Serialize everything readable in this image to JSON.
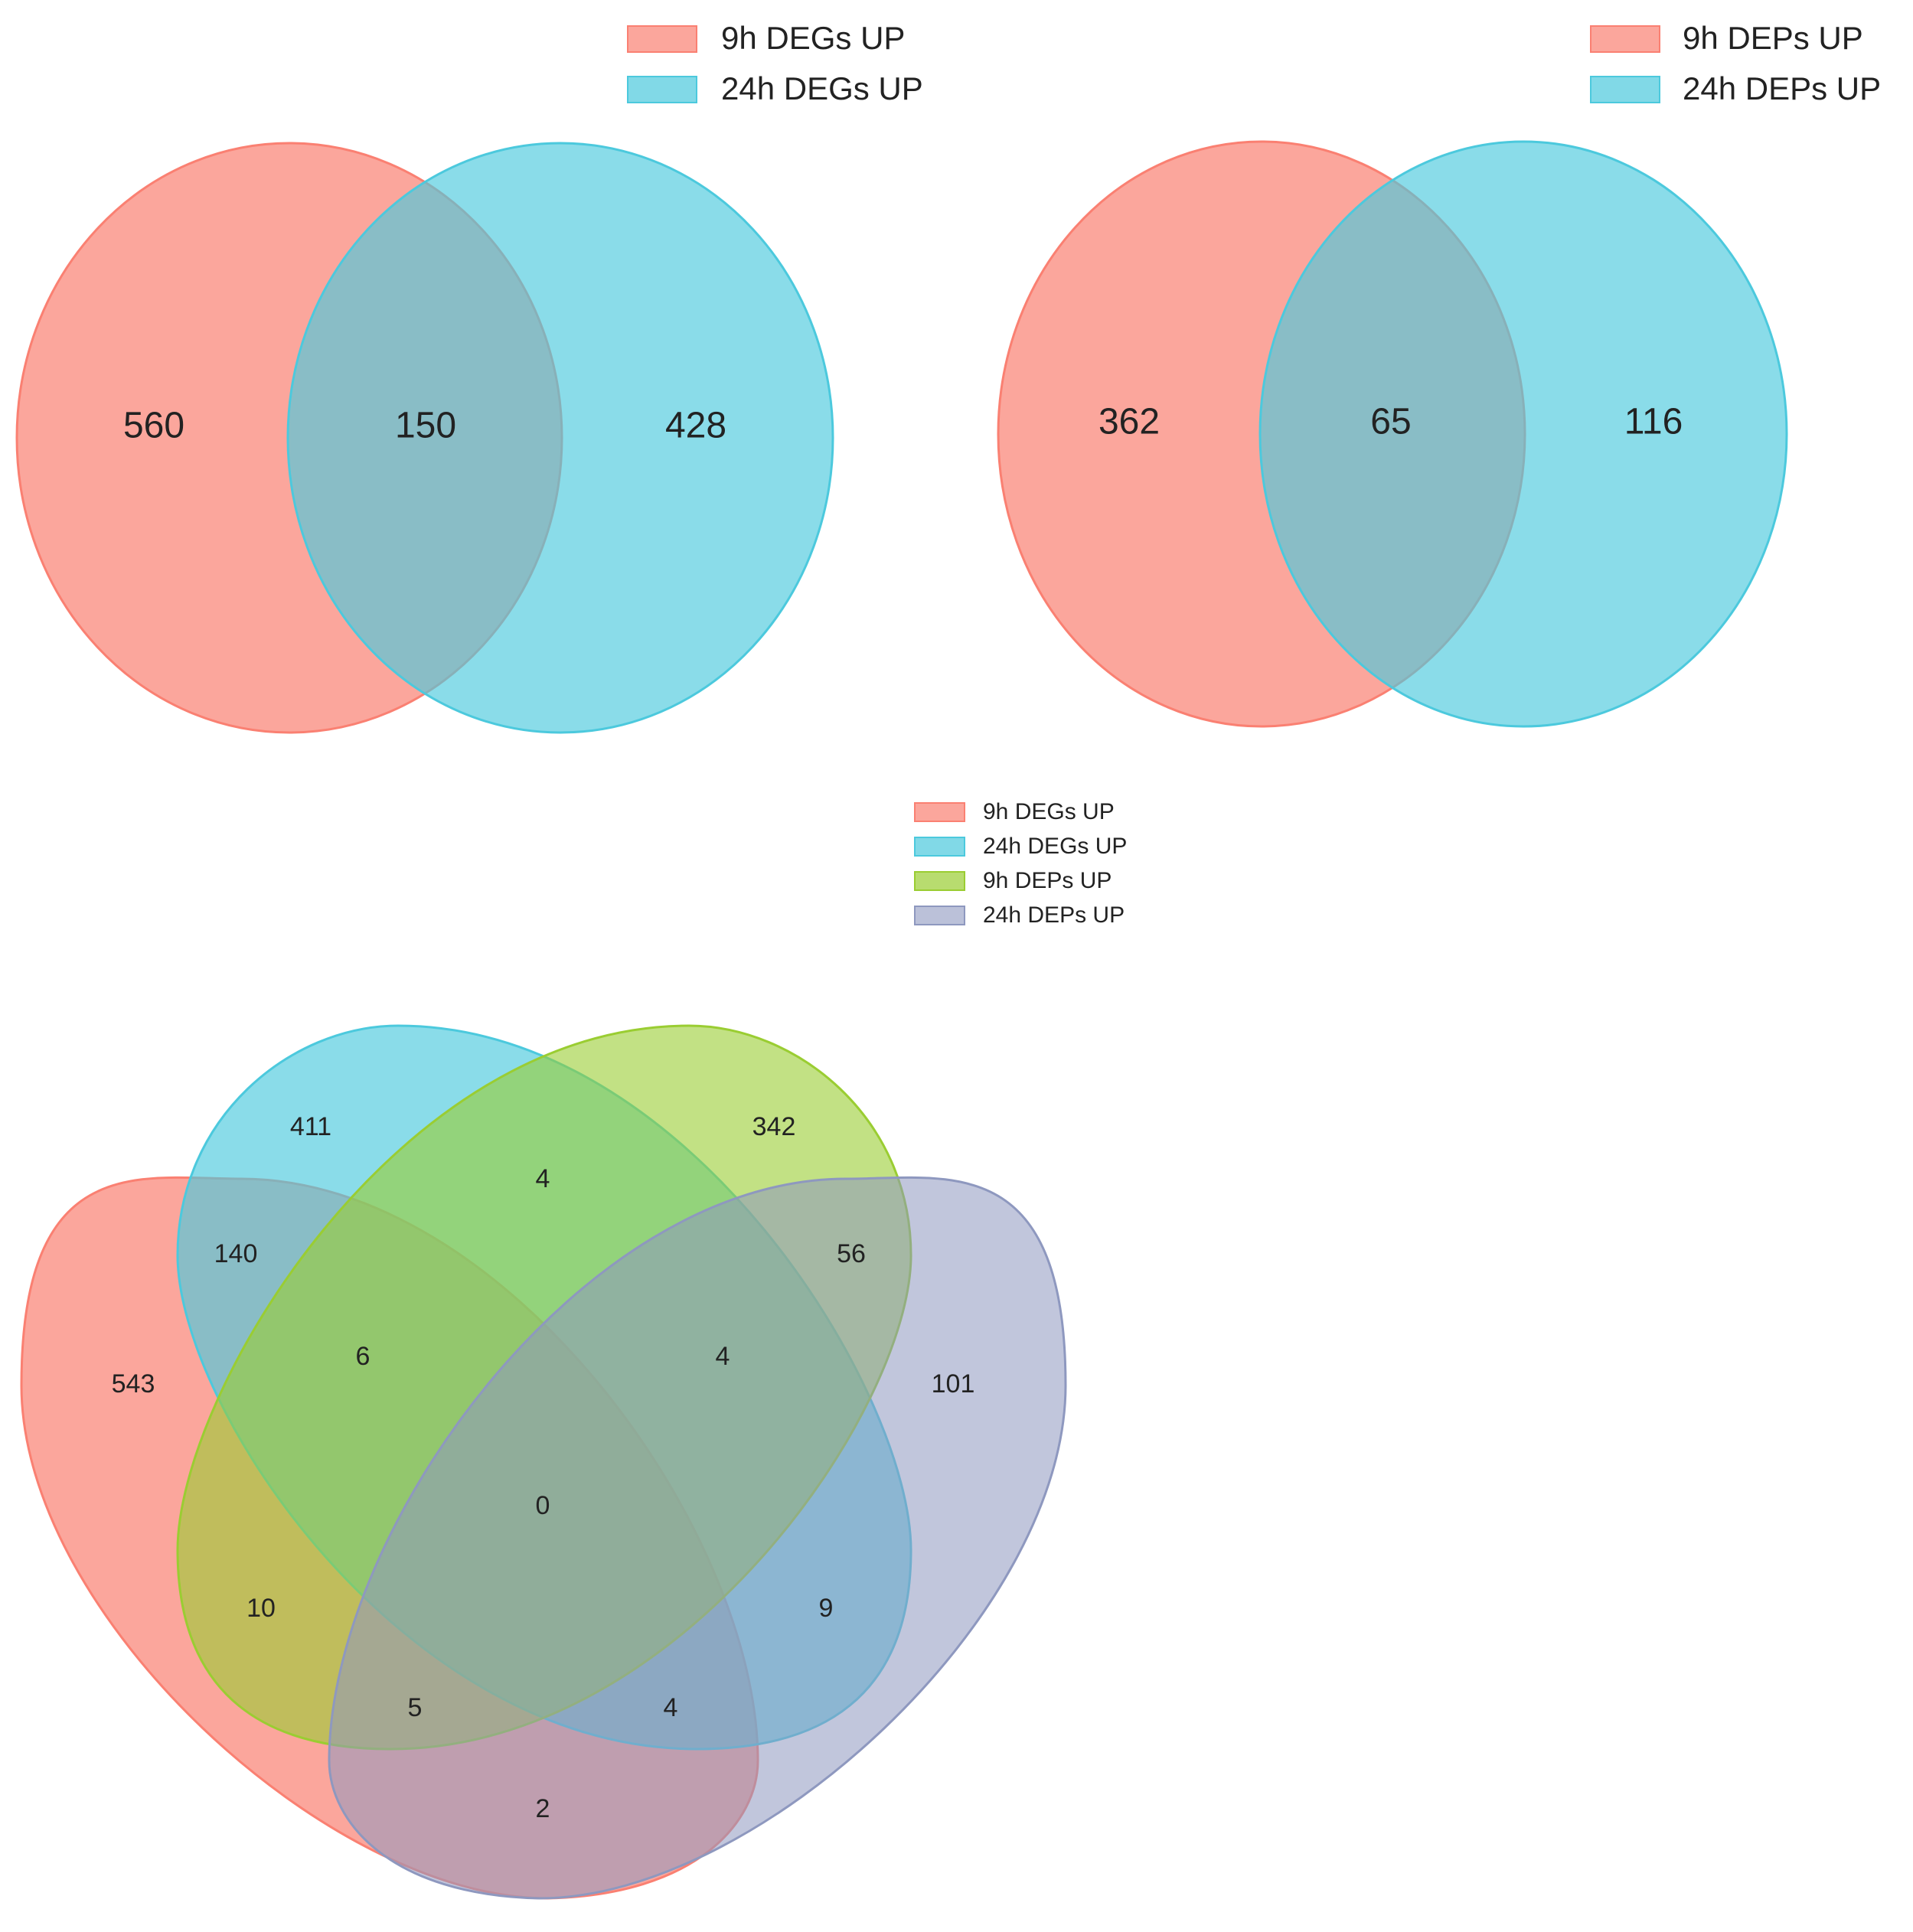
{
  "colors": {
    "deg9": "#fa8072",
    "deg24": "#4cc9dd",
    "dep9": "#9acd32",
    "dep24": "#8e98bf"
  },
  "venn_degs": {
    "legend": [
      "9h DEGs UP",
      "24h DEGs UP"
    ],
    "counts": {
      "only_9h": "560",
      "both": "150",
      "only_24h": "428"
    }
  },
  "venn_deps": {
    "legend": [
      "9h DEPs UP",
      "24h DEPs UP"
    ],
    "counts": {
      "only_9h": "362",
      "both": "65",
      "only_24h": "116"
    }
  },
  "venn4": {
    "legend": [
      "9h DEGs UP",
      "24h DEGs UP",
      "9h DEPs UP",
      "24h DEPs UP"
    ],
    "counts": {
      "a": "543",
      "b": "411",
      "c": "342",
      "d": "101",
      "ab": "140",
      "bc": "4",
      "cd": "56",
      "abc": "6",
      "bcd": "4",
      "abcd": "0",
      "ac": "10",
      "bd": "9",
      "acd": "5",
      "abd": "4",
      "ad": "2"
    }
  }
}
